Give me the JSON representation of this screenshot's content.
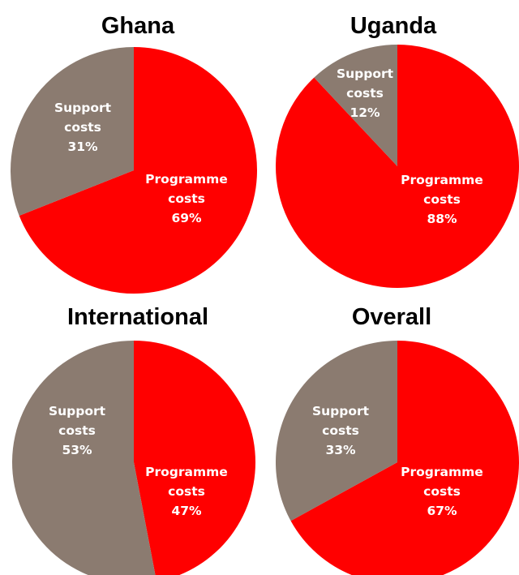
{
  "colors": {
    "programme": "#ff0000",
    "support": "#8b7b70",
    "background": "#ffffff"
  },
  "chart_data": [
    {
      "type": "pie",
      "title": "Ghana",
      "slices": [
        {
          "label_lines": [
            "Programme",
            "costs",
            "69%"
          ],
          "value": 69,
          "color_key": "programme"
        },
        {
          "label_lines": [
            "Support",
            "costs",
            "31%"
          ],
          "value": 31,
          "color_key": "support"
        }
      ]
    },
    {
      "type": "pie",
      "title": "Uganda",
      "slices": [
        {
          "label_lines": [
            "Programme",
            "costs",
            "88%"
          ],
          "value": 88,
          "color_key": "programme"
        },
        {
          "label_lines": [
            "Support",
            "costs",
            "12%"
          ],
          "value": 12,
          "color_key": "support"
        }
      ]
    },
    {
      "type": "pie",
      "title": "International",
      "slices": [
        {
          "label_lines": [
            "Programme",
            "costs",
            "47%"
          ],
          "value": 47,
          "color_key": "programme"
        },
        {
          "label_lines": [
            "Support",
            "costs",
            "53%"
          ],
          "value": 53,
          "color_key": "support"
        }
      ]
    },
    {
      "type": "pie",
      "title": "Overall",
      "slices": [
        {
          "label_lines": [
            "Programme",
            "costs",
            "67%"
          ],
          "value": 67,
          "color_key": "programme"
        },
        {
          "label_lines": [
            "Support",
            "costs",
            "33%"
          ],
          "value": 33,
          "color_key": "support"
        }
      ]
    }
  ]
}
